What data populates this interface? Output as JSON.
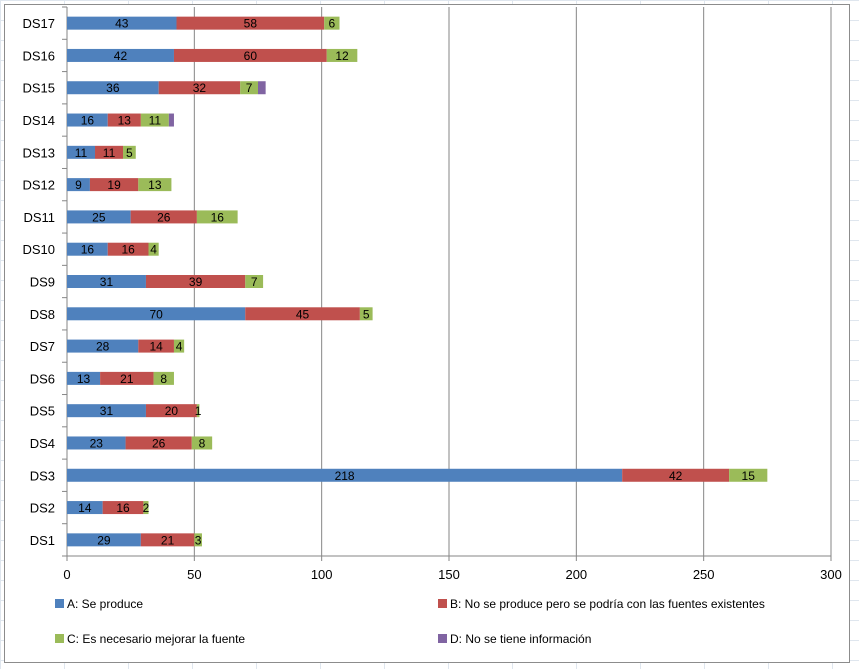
{
  "chart_data": {
    "type": "bar",
    "orientation": "horizontal",
    "stacked": true,
    "title": "",
    "xlabel": "",
    "ylabel": "",
    "xlim": [
      0,
      300
    ],
    "x_ticks": [
      0,
      50,
      100,
      150,
      200,
      250,
      300
    ],
    "grid": "vertical",
    "legend_position": "bottom",
    "categories": [
      "DS17",
      "DS16",
      "DS15",
      "DS14",
      "DS13",
      "DS12",
      "DS11",
      "DS10",
      "DS9",
      "DS8",
      "DS7",
      "DS6",
      "DS5",
      "DS4",
      "DS3",
      "DS2",
      "DS1"
    ],
    "series": [
      {
        "name": "A: Se produce",
        "color": "#4f81bd",
        "values": [
          43,
          42,
          36,
          16,
          11,
          9,
          25,
          16,
          31,
          70,
          28,
          13,
          31,
          23,
          218,
          14,
          29
        ]
      },
      {
        "name": "B: No se produce pero se podría con las fuentes existentes",
        "color": "#c0504d",
        "values": [
          58,
          60,
          32,
          13,
          11,
          19,
          26,
          16,
          39,
          45,
          14,
          21,
          20,
          26,
          42,
          16,
          21
        ]
      },
      {
        "name": "C: Es necesario mejorar la fuente",
        "color": "#9bbb59",
        "values": [
          6,
          12,
          7,
          11,
          5,
          13,
          16,
          4,
          7,
          5,
          4,
          8,
          1,
          8,
          15,
          2,
          3
        ]
      },
      {
        "name": "D: No se tiene información",
        "color": "#8064a2",
        "values": [
          0,
          0,
          3,
          2,
          0,
          0,
          0,
          0,
          0,
          0,
          0,
          0,
          0,
          0,
          0,
          0,
          0
        ]
      }
    ],
    "data_labels_hidden_for": [
      "D: No se tiene información"
    ]
  }
}
